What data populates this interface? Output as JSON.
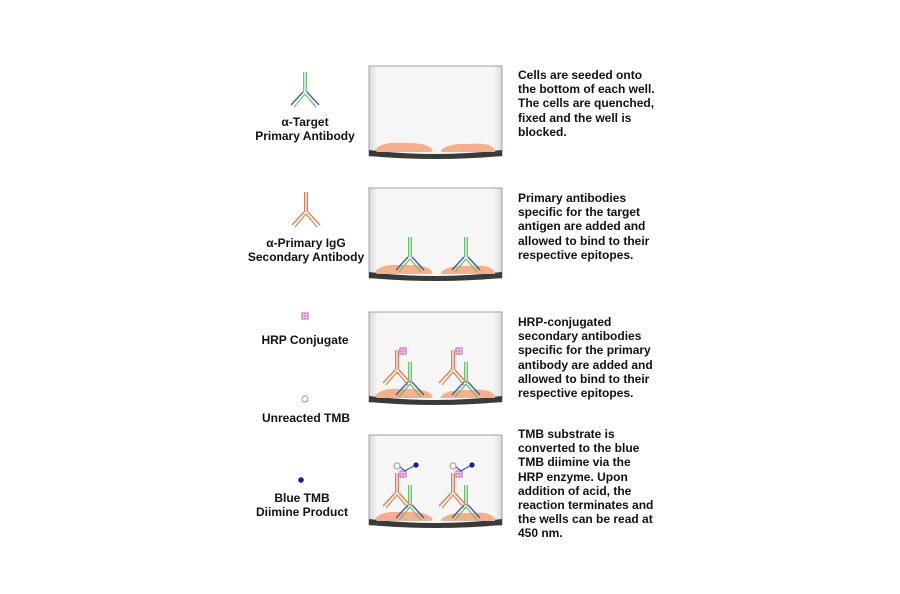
{
  "colors": {
    "primary_stem": "#5cc46a",
    "primary_arms": "#3a5fb0",
    "secondary": "#e0775a",
    "hrp": "#c86fd0",
    "tmb_blue": "#1a1aa8",
    "cells": "#f4b08e",
    "well_border": "#9a9a9a"
  },
  "legend": {
    "primary": [
      "α-Target",
      "Primary Antibody"
    ],
    "secondary": [
      "α-Primary IgG",
      "Secondary Antibody"
    ],
    "hrp": [
      "HRP Conjugate"
    ],
    "tmb": [
      "Unreacted TMB"
    ],
    "diimine": [
      "Blue TMB",
      "Diimine Product"
    ]
  },
  "steps": [
    {
      "lines": [
        "Cells are seeded onto",
        "the bottom of each well.",
        "The cells are quenched,",
        "fixed and the well is",
        "blocked."
      ]
    },
    {
      "lines": [
        "Primary antibodies",
        "specific for the target",
        "antigen are added and",
        "allowed to bind to their",
        "respective epitopes."
      ]
    },
    {
      "lines": [
        "HRP-conjugated",
        "secondary antibodies",
        "specific for the primary",
        "antibody are added and",
        "allowed to bind to their",
        "respective epitopes."
      ]
    },
    {
      "lines": [
        "TMB substrate is",
        "converted to the blue",
        "TMB diimine via the",
        "HRP enzyme. Upon",
        "addition of acid, the",
        "reaction terminates and",
        "the wells can be read at",
        "450 nm."
      ]
    }
  ]
}
